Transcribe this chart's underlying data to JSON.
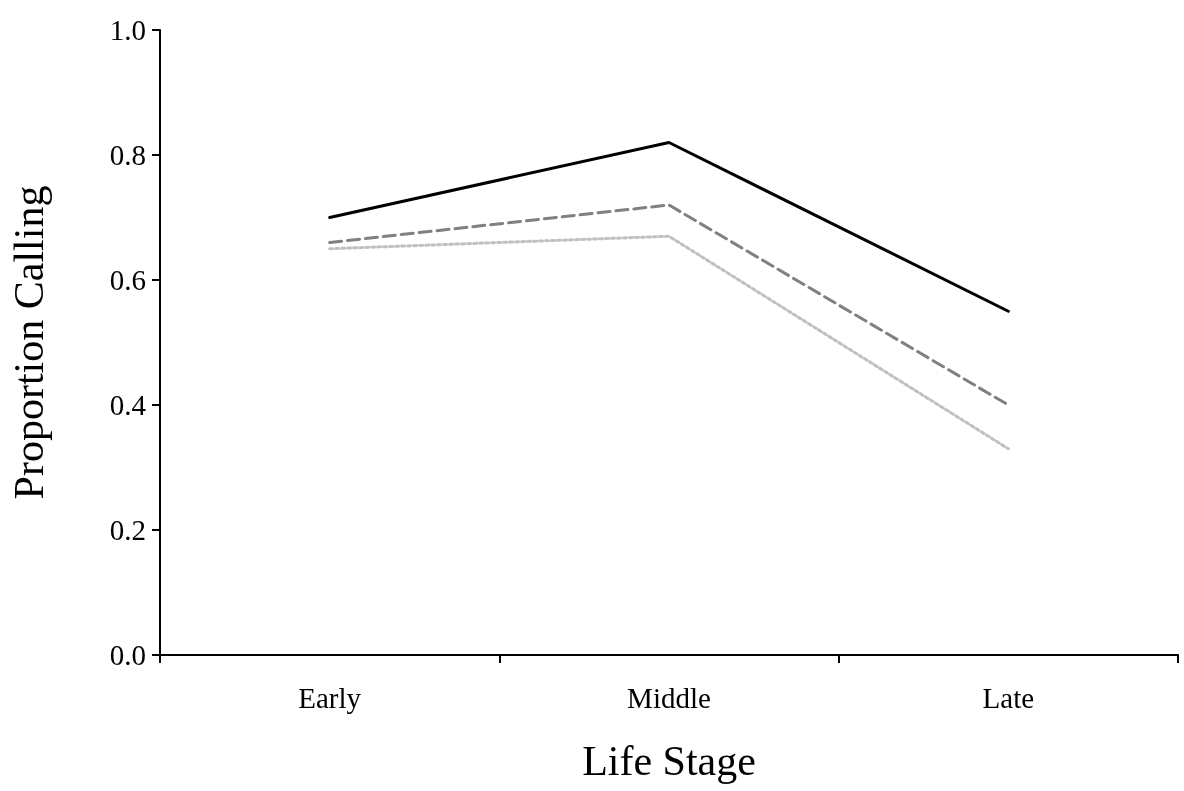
{
  "chart_data": {
    "type": "line",
    "xlabel": "Life Stage",
    "ylabel": "Proportion Calling",
    "categories": [
      "Early",
      "Middle",
      "Late"
    ],
    "series": [
      {
        "color": "#000000",
        "line_style": "solid",
        "values": [
          0.7,
          0.82,
          0.55
        ]
      },
      {
        "color": "#808080",
        "line_style": "dashed",
        "values": [
          0.66,
          0.72,
          0.4
        ]
      },
      {
        "color": "#c0c0c0",
        "line_style": "dotted",
        "values": [
          0.65,
          0.67,
          0.33
        ]
      }
    ],
    "ylim": [
      0,
      1
    ],
    "yticks": [
      {
        "value": 0,
        "label": "0.0"
      },
      {
        "value": 0.2,
        "label": "0.2"
      },
      {
        "value": 0.4,
        "label": "0.4"
      },
      {
        "value": 0.6,
        "label": "0.6"
      },
      {
        "value": 0.8,
        "label": "0.8"
      },
      {
        "value": 1,
        "label": "1.0"
      }
    ],
    "grid": false,
    "marker": "none"
  }
}
